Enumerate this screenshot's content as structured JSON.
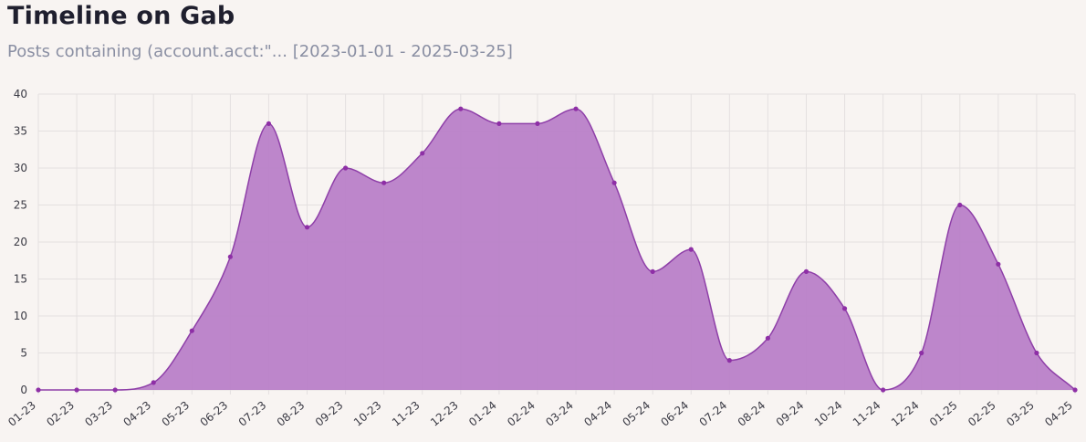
{
  "header": {
    "title": "Timeline on Gab",
    "subtitle": "Posts containing (account.acct:\"... [2023-01-01 - 2025-03-25]"
  },
  "chart_data": {
    "type": "area",
    "title": "Timeline on Gab",
    "subtitle": "Posts containing (account.acct:\"... [2023-01-01 - 2025-03-25]",
    "xlabel": "",
    "ylabel": "",
    "categories": [
      "01-23",
      "02-23",
      "03-23",
      "04-23",
      "05-23",
      "06-23",
      "07-23",
      "08-23",
      "09-23",
      "10-23",
      "11-23",
      "12-23",
      "01-24",
      "02-24",
      "03-24",
      "04-24",
      "05-24",
      "06-24",
      "07-24",
      "08-24",
      "09-24",
      "10-24",
      "11-24",
      "12-24",
      "01-25",
      "02-25",
      "03-25",
      "04-25"
    ],
    "series": [
      {
        "values": [
          0,
          0,
          0,
          1,
          8,
          18,
          36,
          22,
          30,
          28,
          32,
          38,
          36,
          36,
          38,
          28,
          16,
          19,
          4,
          7,
          16,
          11,
          0,
          5,
          25,
          17,
          5,
          0
        ]
      }
    ],
    "yticks": [
      "0",
      "5",
      "10",
      "15",
      "20",
      "25",
      "30",
      "35",
      "40"
    ],
    "ylim": [
      0,
      40
    ],
    "grid": true,
    "legend": "none",
    "colors": {
      "fill": "#b97fc8",
      "line": "#8e3fa8",
      "point": "#8e2fa6",
      "grid": "#e4e0e0",
      "background": "#f8f4f2"
    }
  }
}
